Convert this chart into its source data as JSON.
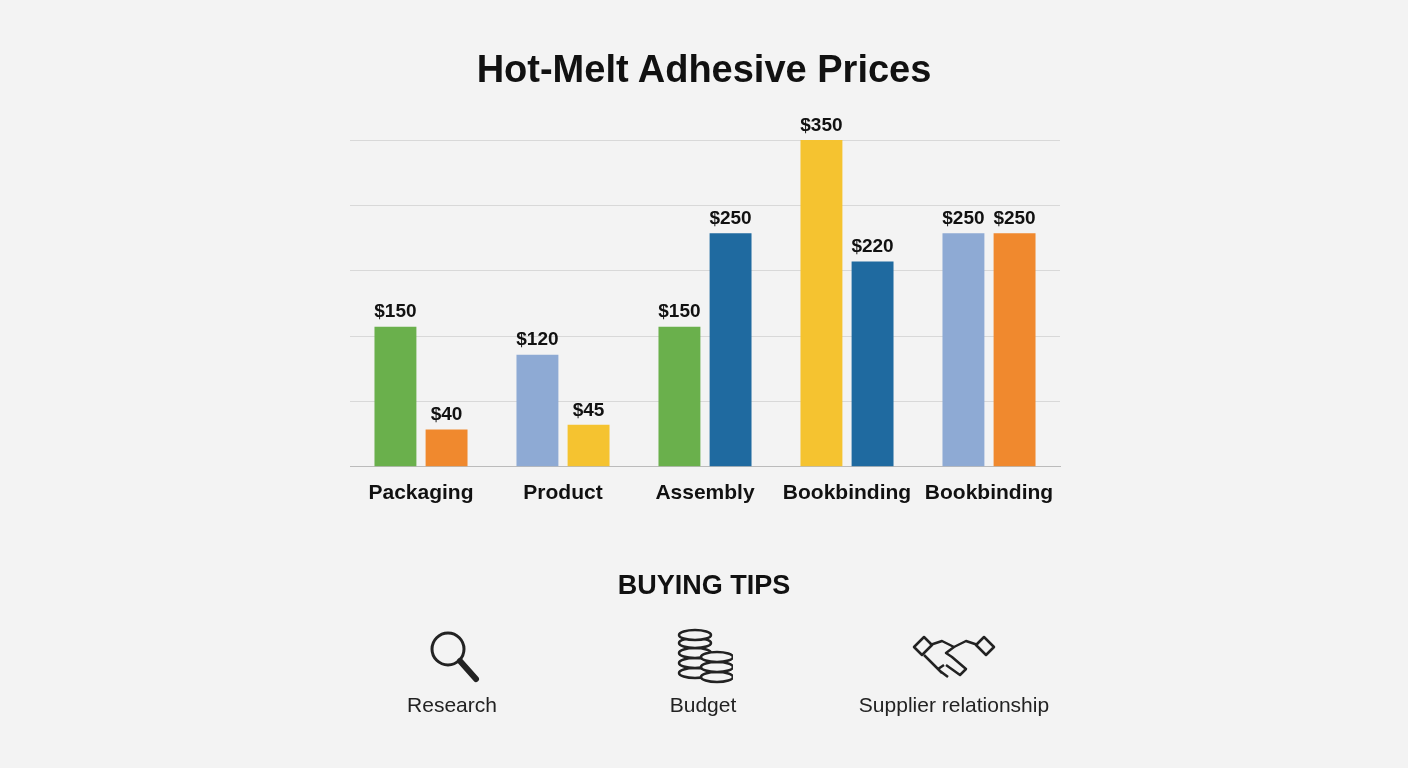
{
  "chart_data": {
    "type": "bar",
    "title": "Hot-Melt Adhesive Prices",
    "categories": [
      "Packaging",
      "Product",
      "Assembly",
      "Bookbinding",
      "Bookbinding"
    ],
    "series": [
      {
        "colors": [
          "#6ab04c",
          "#8eaad4",
          "#6ab04c",
          "#f5c330",
          "#8eaad4"
        ],
        "values": [
          150,
          120,
          150,
          350,
          250
        ],
        "value_labels": [
          "$150",
          "$120",
          "$150",
          "$350",
          "$250"
        ]
      },
      {
        "colors": [
          "#f0892e",
          "#f5c330",
          "#1f6aa0",
          "#1f6aa0",
          "#f0892e"
        ],
        "values": [
          40,
          45,
          250,
          220,
          250
        ],
        "value_labels": [
          "$40",
          "$45",
          "$250",
          "$220",
          "$250"
        ]
      }
    ],
    "ylim": [
      0,
      350
    ],
    "yticks": [
      {
        "value": 0,
        "label": null
      },
      {
        "value": 70,
        "label": null
      },
      {
        "value": 140,
        "label": null
      },
      {
        "value": 210,
        "label": null
      },
      {
        "value": 280,
        "label": null
      },
      {
        "value": 350,
        "label": null
      }
    ],
    "grid": "y",
    "legend": false,
    "tick_labels": "x",
    "annotations": [
      "BUYING TIPS",
      "Research",
      "Budget",
      "Supplier relationship"
    ]
  }
}
